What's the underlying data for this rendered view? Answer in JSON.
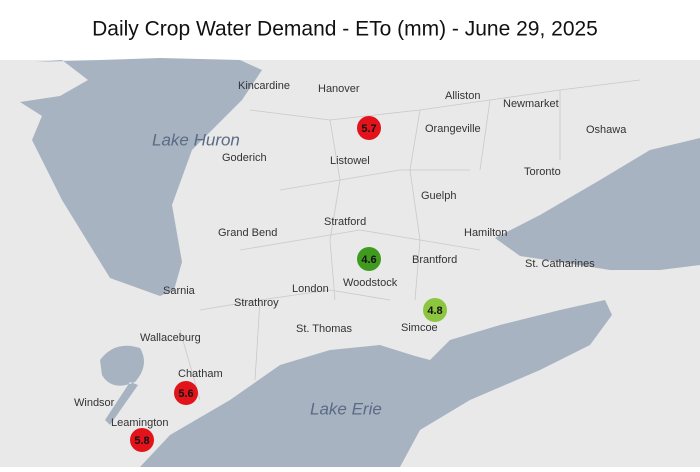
{
  "title": "Daily Crop Water Demand - ETo (mm) - June 29, 2025",
  "lakes": [
    "Lake Huron",
    "Lake Erie"
  ],
  "places": [
    "Kincardine",
    "Hanover",
    "Alliston",
    "Newmarket",
    "Orangeville",
    "Oshawa",
    "Goderich",
    "Listowel",
    "Toronto",
    "Guelph",
    "Stratford",
    "Grand Bend",
    "Hamilton",
    "Brantford",
    "St. Catharines",
    "Woodstock",
    "Sarnia",
    "London",
    "Strathroy",
    "Simcoe",
    "Wallaceburg",
    "St. Thomas",
    "Chatham",
    "Windsor",
    "Leamington"
  ],
  "stations": [
    {
      "value": 5.7,
      "color": "#e3131b"
    },
    {
      "value": 4.6,
      "color": "#3f9a1f"
    },
    {
      "value": 4.8,
      "color": "#8cc63f"
    },
    {
      "value": 5.6,
      "color": "#e3131b"
    },
    {
      "value": 5.8,
      "color": "#e3131b"
    }
  ]
}
